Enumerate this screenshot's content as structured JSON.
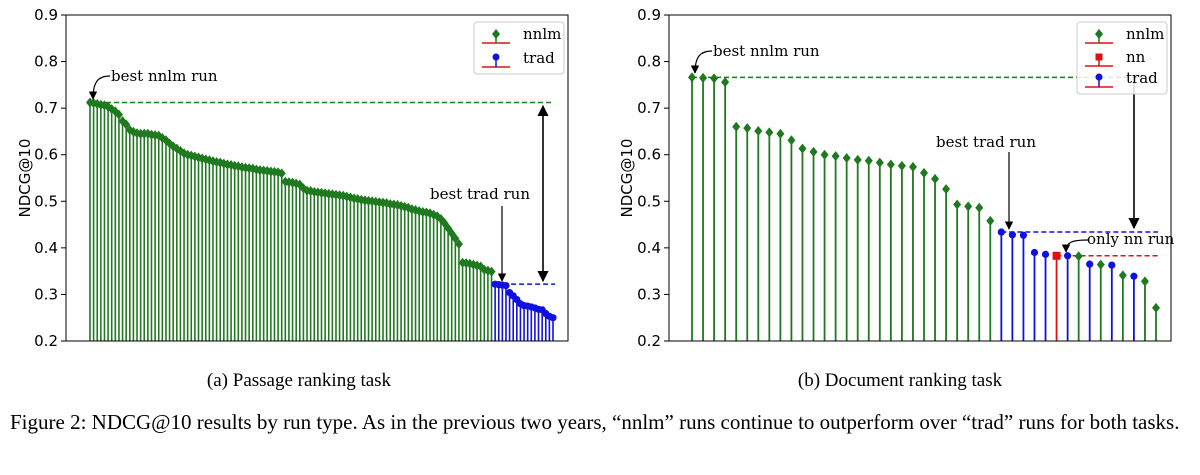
{
  "chart_data": [
    {
      "type": "stem",
      "panel": "a",
      "subcaption": "(a) Passage ranking task",
      "ylabel": "NDCG@10",
      "ylim": [
        0.2,
        0.9
      ],
      "yticks": [
        0.2,
        0.3,
        0.4,
        0.5,
        0.6,
        0.7,
        0.8,
        0.9
      ],
      "ytick_labels": [
        "0.2",
        "0.3",
        "0.4",
        "0.5",
        "0.6",
        "0.7",
        "0.8",
        "0.9"
      ],
      "legend": {
        "placement": "top-right",
        "entries": [
          {
            "name": "nnlm",
            "color": "#1f7a1f"
          },
          {
            "name": "trad",
            "color": "#1010e0"
          }
        ]
      },
      "series": [
        {
          "name": "nnlm",
          "marker": "diamond",
          "color": "#1f7a1f",
          "values": [
            0.712,
            0.711,
            0.709,
            0.707,
            0.706,
            0.703,
            0.698,
            0.693,
            0.686,
            0.672,
            0.665,
            0.653,
            0.649,
            0.646,
            0.645,
            0.645,
            0.645,
            0.643,
            0.642,
            0.641,
            0.636,
            0.631,
            0.624,
            0.618,
            0.613,
            0.608,
            0.603,
            0.6,
            0.598,
            0.596,
            0.594,
            0.592,
            0.59,
            0.588,
            0.586,
            0.584,
            0.583,
            0.581,
            0.579,
            0.578,
            0.576,
            0.575,
            0.573,
            0.572,
            0.571,
            0.57,
            0.568,
            0.567,
            0.566,
            0.565,
            0.564,
            0.563,
            0.562,
            0.56,
            0.542,
            0.541,
            0.54,
            0.538,
            0.536,
            0.528,
            0.523,
            0.522,
            0.52,
            0.519,
            0.518,
            0.517,
            0.516,
            0.515,
            0.514,
            0.513,
            0.512,
            0.51,
            0.508,
            0.506,
            0.505,
            0.503,
            0.502,
            0.501,
            0.5,
            0.499,
            0.498,
            0.497,
            0.496,
            0.494,
            0.493,
            0.492,
            0.49,
            0.488,
            0.486,
            0.483,
            0.481,
            0.479,
            0.477,
            0.476,
            0.474,
            0.471,
            0.468,
            0.462,
            0.453,
            0.442,
            0.431,
            0.42,
            0.408,
            0.368,
            0.367,
            0.366,
            0.364,
            0.362,
            0.36,
            0.353,
            0.351,
            0.349
          ]
        },
        {
          "name": "trad",
          "marker": "circle",
          "color": "#1010e0",
          "values": [
            0.322,
            0.321,
            0.32,
            0.319,
            0.304,
            0.297,
            0.289,
            0.28,
            0.276,
            0.275,
            0.273,
            0.271,
            0.268,
            0.267,
            0.259,
            0.253,
            0.25
          ]
        }
      ],
      "reference_lines": [
        {
          "value": 0.712,
          "color": "#1f7a1f"
        },
        {
          "value": 0.322,
          "color": "#1010e0"
        }
      ],
      "annotations": [
        {
          "text": "best nnlm run"
        },
        {
          "text": "best trad run"
        }
      ]
    },
    {
      "type": "stem",
      "panel": "b",
      "subcaption": "(b) Document ranking task",
      "ylabel": "NDCG@10",
      "ylim": [
        0.2,
        0.9
      ],
      "yticks": [
        0.2,
        0.3,
        0.4,
        0.5,
        0.6,
        0.7,
        0.8,
        0.9
      ],
      "ytick_labels": [
        "0.2",
        "0.3",
        "0.4",
        "0.5",
        "0.6",
        "0.7",
        "0.8",
        "0.9"
      ],
      "legend": {
        "placement": "top-right",
        "entries": [
          {
            "name": "nnlm",
            "color": "#1f7a1f"
          },
          {
            "name": "nn",
            "color": "#e01010"
          },
          {
            "name": "trad",
            "color": "#1010e0"
          }
        ]
      },
      "runs": [
        {
          "type": "nnlm",
          "value": 0.766
        },
        {
          "type": "nnlm",
          "value": 0.765
        },
        {
          "type": "nnlm",
          "value": 0.764
        },
        {
          "type": "nnlm",
          "value": 0.756
        },
        {
          "type": "nnlm",
          "value": 0.66
        },
        {
          "type": "nnlm",
          "value": 0.657
        },
        {
          "type": "nnlm",
          "value": 0.651
        },
        {
          "type": "nnlm",
          "value": 0.648
        },
        {
          "type": "nnlm",
          "value": 0.645
        },
        {
          "type": "nnlm",
          "value": 0.631
        },
        {
          "type": "nnlm",
          "value": 0.613
        },
        {
          "type": "nnlm",
          "value": 0.606
        },
        {
          "type": "nnlm",
          "value": 0.6
        },
        {
          "type": "nnlm",
          "value": 0.597
        },
        {
          "type": "nnlm",
          "value": 0.593
        },
        {
          "type": "nnlm",
          "value": 0.589
        },
        {
          "type": "nnlm",
          "value": 0.587
        },
        {
          "type": "nnlm",
          "value": 0.583
        },
        {
          "type": "nnlm",
          "value": 0.579
        },
        {
          "type": "nnlm",
          "value": 0.576
        },
        {
          "type": "nnlm",
          "value": 0.574
        },
        {
          "type": "nnlm",
          "value": 0.561
        },
        {
          "type": "nnlm",
          "value": 0.548
        },
        {
          "type": "nnlm",
          "value": 0.526
        },
        {
          "type": "nnlm",
          "value": 0.493
        },
        {
          "type": "nnlm",
          "value": 0.489
        },
        {
          "type": "nnlm",
          "value": 0.486
        },
        {
          "type": "nnlm",
          "value": 0.458
        },
        {
          "type": "trad",
          "value": 0.434
        },
        {
          "type": "trad",
          "value": 0.428
        },
        {
          "type": "trad",
          "value": 0.427
        },
        {
          "type": "trad",
          "value": 0.39
        },
        {
          "type": "trad",
          "value": 0.386
        },
        {
          "type": "nn",
          "value": 0.383
        },
        {
          "type": "trad",
          "value": 0.383
        },
        {
          "type": "nnlm",
          "value": 0.382
        },
        {
          "type": "trad",
          "value": 0.365
        },
        {
          "type": "nnlm",
          "value": 0.364
        },
        {
          "type": "trad",
          "value": 0.363
        },
        {
          "type": "nnlm",
          "value": 0.341
        },
        {
          "type": "trad",
          "value": 0.339
        },
        {
          "type": "nnlm",
          "value": 0.328
        },
        {
          "type": "nnlm",
          "value": 0.271
        }
      ],
      "reference_lines": [
        {
          "value": 0.766,
          "color": "#1f7a1f"
        },
        {
          "value": 0.434,
          "color": "#1010e0"
        },
        {
          "value": 0.383,
          "color": "#e01010"
        }
      ],
      "annotations": [
        {
          "text": "best nnlm run"
        },
        {
          "text": "best trad run"
        },
        {
          "text": "only nn run"
        }
      ]
    }
  ],
  "figure_caption": "Figure 2: NDCG@10 results by run type. As in the previous two years, “nnlm” runs continue to outperform over “trad” runs for both tasks."
}
